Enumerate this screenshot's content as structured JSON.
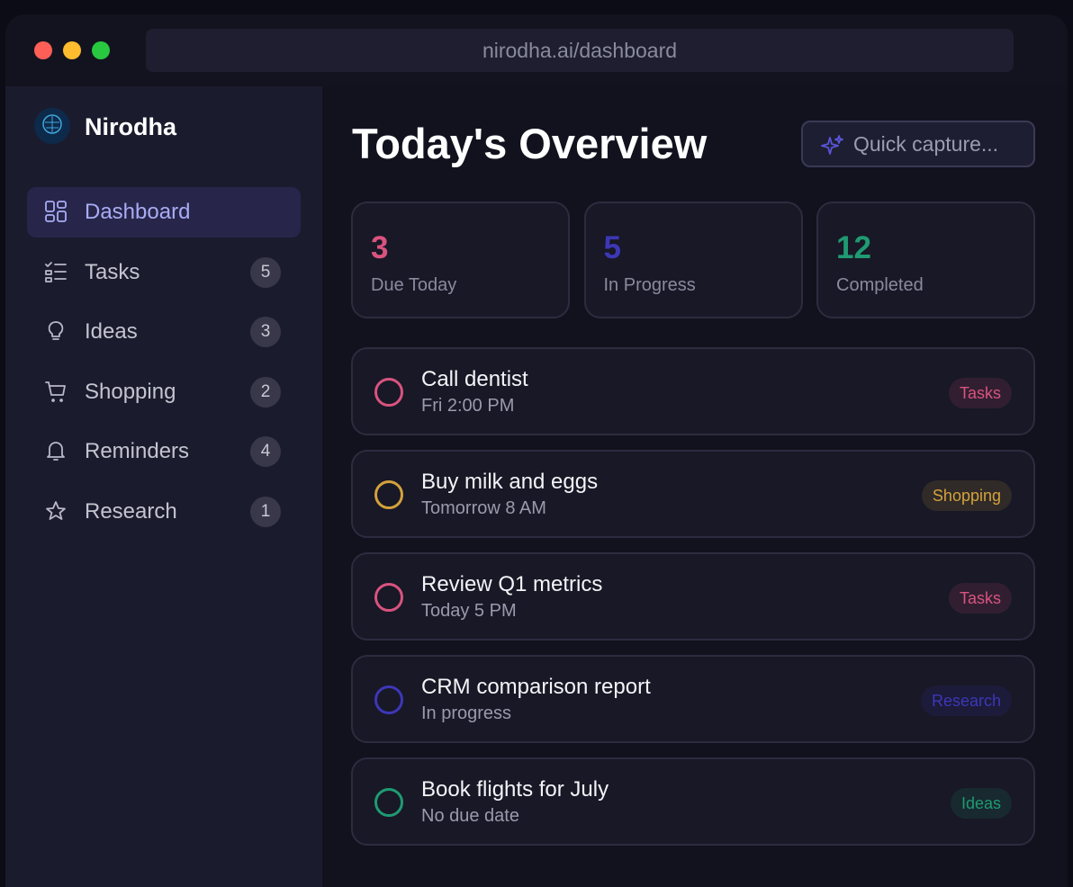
{
  "browser": {
    "url": "nirodha.ai/dashboard"
  },
  "sidebar": {
    "brand": "Nirodha",
    "nav": [
      {
        "label": "Dashboard",
        "count": null
      },
      {
        "label": "Tasks",
        "count": "5"
      },
      {
        "label": "Ideas",
        "count": "3"
      },
      {
        "label": "Shopping",
        "count": "2"
      },
      {
        "label": "Reminders",
        "count": "4"
      },
      {
        "label": "Research",
        "count": "1"
      }
    ]
  },
  "header": {
    "title": "Today's Overview",
    "quick_capture": "Quick capture..."
  },
  "stats": [
    {
      "value": "3",
      "label": "Due Today",
      "color": "#d9537f"
    },
    {
      "value": "5",
      "label": "In Progress",
      "color": "#3d37b8"
    },
    {
      "value": "12",
      "label": "Completed",
      "color": "#1f9a72"
    }
  ],
  "tasks": [
    {
      "title": "Call dentist",
      "subtitle": "Fri 2:00 PM",
      "tag": "Tasks",
      "color": "#d9537f"
    },
    {
      "title": "Buy milk and eggs",
      "subtitle": "Tomorrow 8 AM",
      "tag": "Shopping",
      "color": "#d4a23c"
    },
    {
      "title": "Review Q1 metrics",
      "subtitle": "Today 5 PM",
      "tag": "Tasks",
      "color": "#d9537f"
    },
    {
      "title": "CRM comparison report",
      "subtitle": "In progress",
      "tag": "Research",
      "color": "#3d37b8"
    },
    {
      "title": "Book flights for July",
      "subtitle": "No due date",
      "tag": "Ideas",
      "color": "#1f9a72"
    }
  ]
}
